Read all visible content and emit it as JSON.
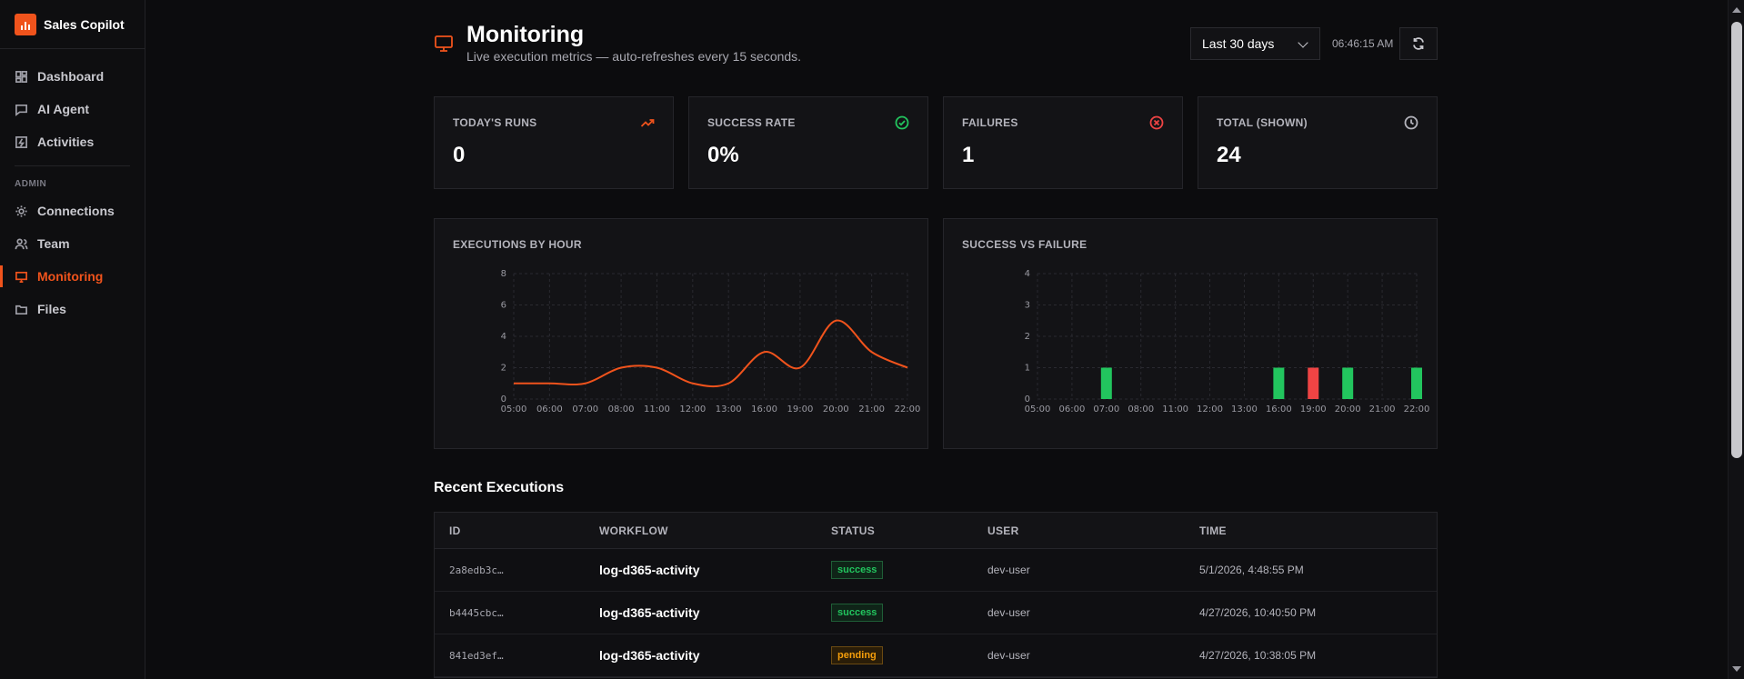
{
  "brand": {
    "name": "Sales Copilot"
  },
  "sidebar": {
    "items": [
      {
        "label": "Dashboard",
        "icon": "dashboard-icon"
      },
      {
        "label": "AI Agent",
        "icon": "chat-icon"
      },
      {
        "label": "Activities",
        "icon": "activity-icon"
      }
    ],
    "admin_section_label": "ADMIN",
    "admin_items": [
      {
        "label": "Connections",
        "icon": "gear-icon"
      },
      {
        "label": "Team",
        "icon": "users-icon"
      },
      {
        "label": "Monitoring",
        "icon": "monitor-icon",
        "active": true
      },
      {
        "label": "Files",
        "icon": "folder-icon"
      }
    ]
  },
  "header": {
    "title": "Monitoring",
    "subtitle": "Live execution metrics — auto-refreshes every 15 seconds.",
    "range": "Last 30 days",
    "time": "06:46:15 AM"
  },
  "stats": [
    {
      "label": "TODAY'S RUNS",
      "value": "0",
      "icon": "trending-up-icon",
      "color": "#f0531c"
    },
    {
      "label": "SUCCESS RATE",
      "value": "0%",
      "icon": "check-circle-icon",
      "color": "#22c55e"
    },
    {
      "label": "FAILURES",
      "value": "1",
      "icon": "x-circle-icon",
      "color": "#ef4444"
    },
    {
      "label": "TOTAL (SHOWN)",
      "value": "24",
      "icon": "clock-icon",
      "color": "#b4b4bc"
    }
  ],
  "chart_data": [
    {
      "type": "line",
      "title": "EXECUTIONS BY HOUR",
      "x": [
        "05:00",
        "06:00",
        "07:00",
        "08:00",
        "11:00",
        "12:00",
        "13:00",
        "16:00",
        "19:00",
        "20:00",
        "21:00",
        "22:00"
      ],
      "yticks": [
        0,
        2,
        4,
        6,
        8
      ],
      "ylim": [
        0,
        8
      ],
      "series": [
        {
          "values": [
            1,
            1,
            1,
            2,
            2,
            1,
            1,
            3,
            2,
            5,
            3,
            2
          ],
          "color": "#f0531c"
        }
      ],
      "grid": true
    },
    {
      "type": "bar",
      "title": "SUCCESS VS FAILURE",
      "categories": [
        "05:00",
        "06:00",
        "07:00",
        "08:00",
        "11:00",
        "12:00",
        "13:00",
        "16:00",
        "19:00",
        "20:00",
        "21:00",
        "22:00"
      ],
      "yticks": [
        0,
        1,
        2,
        3,
        4
      ],
      "ylim": [
        0,
        4
      ],
      "series": [
        {
          "values": [
            0,
            0,
            1,
            0,
            0,
            0,
            0,
            1,
            0,
            1,
            0,
            1
          ],
          "color": "#22c55e"
        },
        {
          "values": [
            0,
            0,
            0,
            0,
            0,
            0,
            0,
            0,
            1,
            0,
            0,
            0
          ],
          "color": "#ef4444"
        }
      ],
      "grid": true
    }
  ],
  "recent": {
    "title": "Recent Executions",
    "columns": [
      "ID",
      "WORKFLOW",
      "STATUS",
      "USER",
      "TIME"
    ],
    "rows": [
      {
        "id": "2a8edb3c…",
        "workflow": "log-d365-activity",
        "status": "success",
        "user": "dev-user",
        "time": "5/1/2026, 4:48:55 PM"
      },
      {
        "id": "b4445cbc…",
        "workflow": "log-d365-activity",
        "status": "success",
        "user": "dev-user",
        "time": "4/27/2026, 10:40:50 PM"
      },
      {
        "id": "841ed3ef…",
        "workflow": "log-d365-activity",
        "status": "pending",
        "user": "dev-user",
        "time": "4/27/2026, 10:38:05 PM"
      }
    ]
  }
}
